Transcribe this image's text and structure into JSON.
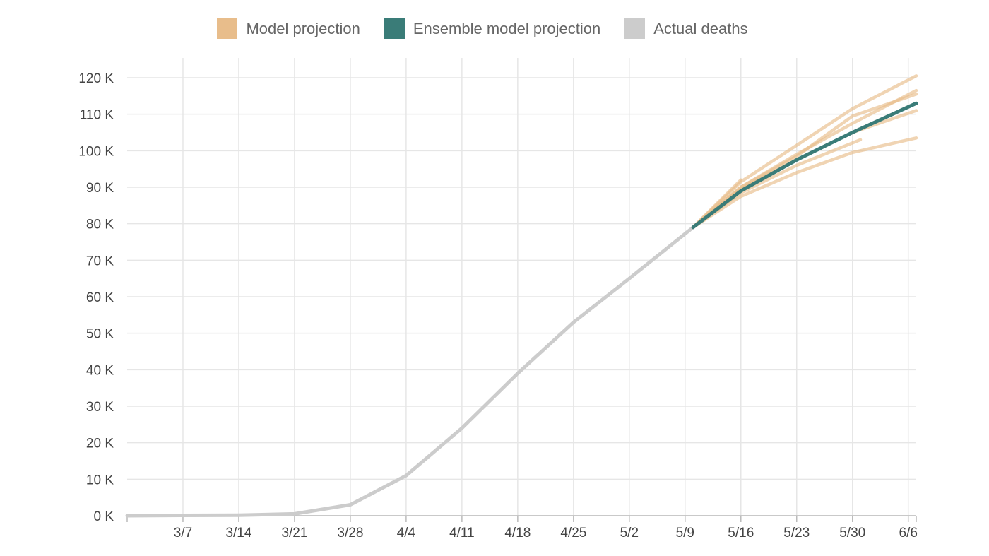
{
  "legend": {
    "model": {
      "label": "Model projection",
      "color": "#e8bd8b"
    },
    "ensemble": {
      "label": "Ensemble model projection",
      "color": "#3a7c78"
    },
    "actual": {
      "label": "Actual deaths",
      "color": "#cccccc"
    }
  },
  "chart_data": {
    "type": "line",
    "title": "",
    "xlabel": "",
    "ylabel": "",
    "grid": true,
    "legend_position": "top-center",
    "x_start": "2020-02-29",
    "x_end": "2020-06-07",
    "xticks": [
      {
        "date": "2020-03-07",
        "label": "3/7"
      },
      {
        "date": "2020-03-14",
        "label": "3/14"
      },
      {
        "date": "2020-03-21",
        "label": "3/21"
      },
      {
        "date": "2020-03-28",
        "label": "3/28"
      },
      {
        "date": "2020-04-04",
        "label": "4/4"
      },
      {
        "date": "2020-04-11",
        "label": "4/11"
      },
      {
        "date": "2020-04-18",
        "label": "4/18"
      },
      {
        "date": "2020-04-25",
        "label": "4/25"
      },
      {
        "date": "2020-05-02",
        "label": "5/2"
      },
      {
        "date": "2020-05-09",
        "label": "5/9"
      },
      {
        "date": "2020-05-16",
        "label": "5/16"
      },
      {
        "date": "2020-05-23",
        "label": "5/23"
      },
      {
        "date": "2020-05-30",
        "label": "5/30"
      },
      {
        "date": "2020-06-06",
        "label": "6/6"
      }
    ],
    "ylim": [
      0,
      120000
    ],
    "yticks": [
      {
        "value": 0,
        "label": "0 K"
      },
      {
        "value": 10000,
        "label": "10 K"
      },
      {
        "value": 20000,
        "label": "20 K"
      },
      {
        "value": 30000,
        "label": "30 K"
      },
      {
        "value": 40000,
        "label": "40 K"
      },
      {
        "value": 50000,
        "label": "50 K"
      },
      {
        "value": 60000,
        "label": "60 K"
      },
      {
        "value": 70000,
        "label": "70 K"
      },
      {
        "value": 80000,
        "label": "80 K"
      },
      {
        "value": 90000,
        "label": "90 K"
      },
      {
        "value": 100000,
        "label": "100 K"
      },
      {
        "value": 110000,
        "label": "110 K"
      },
      {
        "value": 120000,
        "label": "120 K"
      }
    ],
    "series": [
      {
        "name": "Actual deaths",
        "color": "#cccccc",
        "points": [
          {
            "date": "2020-02-29",
            "value": 0
          },
          {
            "date": "2020-03-07",
            "value": 100
          },
          {
            "date": "2020-03-14",
            "value": 150
          },
          {
            "date": "2020-03-21",
            "value": 500
          },
          {
            "date": "2020-03-28",
            "value": 3000
          },
          {
            "date": "2020-04-04",
            "value": 11000
          },
          {
            "date": "2020-04-11",
            "value": 24000
          },
          {
            "date": "2020-04-18",
            "value": 39000
          },
          {
            "date": "2020-04-25",
            "value": 53000
          },
          {
            "date": "2020-05-02",
            "value": 65000
          },
          {
            "date": "2020-05-10",
            "value": 79000
          }
        ]
      },
      {
        "name": "Ensemble model projection",
        "color": "#3a7c78",
        "points": [
          {
            "date": "2020-05-10",
            "value": 79000
          },
          {
            "date": "2020-05-16",
            "value": 89000
          },
          {
            "date": "2020-05-23",
            "value": 97500
          },
          {
            "date": "2020-05-30",
            "value": 105000
          },
          {
            "date": "2020-06-07",
            "value": 113000
          }
        ]
      }
    ],
    "model_projections": {
      "name": "Model projection",
      "color": "#e8bd8b",
      "lines": [
        [
          {
            "date": "2020-05-10",
            "value": 79000
          },
          {
            "date": "2020-05-16",
            "value": 92000
          }
        ],
        [
          {
            "date": "2020-05-10",
            "value": 79000
          },
          {
            "date": "2020-05-16",
            "value": 91500
          },
          {
            "date": "2020-05-23",
            "value": 101500
          },
          {
            "date": "2020-05-30",
            "value": 111500
          },
          {
            "date": "2020-06-07",
            "value": 120500
          }
        ],
        [
          {
            "date": "2020-05-10",
            "value": 79000
          },
          {
            "date": "2020-05-16",
            "value": 90000
          },
          {
            "date": "2020-05-23",
            "value": 99000
          },
          {
            "date": "2020-05-30",
            "value": 107500
          },
          {
            "date": "2020-06-07",
            "value": 116500
          }
        ],
        [
          {
            "date": "2020-05-10",
            "value": 79000
          },
          {
            "date": "2020-05-16",
            "value": 90000
          },
          {
            "date": "2020-05-23",
            "value": 98500
          },
          {
            "date": "2020-05-30",
            "value": 109500
          },
          {
            "date": "2020-06-07",
            "value": 115500
          }
        ],
        [
          {
            "date": "2020-05-10",
            "value": 79000
          },
          {
            "date": "2020-05-16",
            "value": 89500
          },
          {
            "date": "2020-05-23",
            "value": 97500
          },
          {
            "date": "2020-05-30",
            "value": 105000
          },
          {
            "date": "2020-06-07",
            "value": 111000
          }
        ],
        [
          {
            "date": "2020-05-10",
            "value": 79000
          },
          {
            "date": "2020-05-16",
            "value": 88500
          },
          {
            "date": "2020-05-23",
            "value": 96000
          },
          {
            "date": "2020-05-31",
            "value": 103000
          }
        ],
        [
          {
            "date": "2020-05-10",
            "value": 79000
          },
          {
            "date": "2020-05-16",
            "value": 87500
          },
          {
            "date": "2020-05-23",
            "value": 94000
          },
          {
            "date": "2020-05-30",
            "value": 99500
          },
          {
            "date": "2020-06-07",
            "value": 103500
          }
        ]
      ]
    }
  }
}
